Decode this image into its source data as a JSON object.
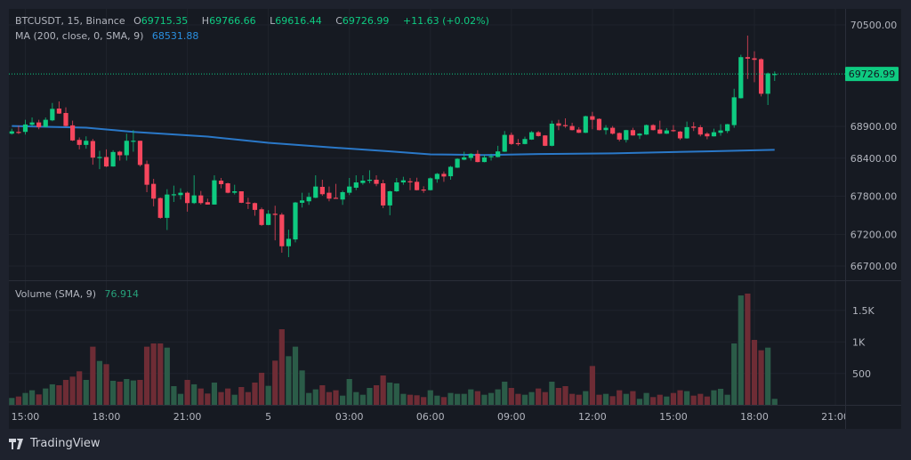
{
  "header": {
    "symbol": "BTCUSDT, 15, Binance",
    "ohlc": [
      {
        "label": "O",
        "value": "69715.35"
      },
      {
        "label": "H",
        "value": "69766.66"
      },
      {
        "label": "L",
        "value": "69616.44"
      },
      {
        "label": "C",
        "value": "69726.99"
      }
    ],
    "change": "+11.63 (+0.02%)"
  },
  "ma_indicator": {
    "label": "MA (200, close, 0, SMA, 9)",
    "value": "68531.88"
  },
  "volume_indicator": {
    "label": "Volume (SMA, 9)",
    "value": "76.914"
  },
  "last_price_label": "69726.99",
  "branding": "TradingView",
  "colors": {
    "up": "#0ecb81",
    "down": "#f6465d",
    "ma": "#2a78c8",
    "volume_up": "#2b5c48",
    "volume_down": "#6e2c35",
    "background": "#161a22",
    "frame": "#1e222d"
  },
  "chart_data": {
    "type": "candlestick",
    "symbol": "BTCUSDT",
    "interval": "15",
    "price_axis": {
      "ticks": [
        "70500.00",
        "68900.00",
        "68400.00",
        "67800.00",
        "67200.00",
        "66700.00"
      ],
      "range": [
        66700,
        70500
      ]
    },
    "volume_axis": {
      "ticks": [
        {
          "label": "1.5K",
          "value": 1500
        },
        {
          "label": "1K",
          "value": 1000
        },
        {
          "label": "500",
          "value": 500
        }
      ]
    },
    "x_axis": {
      "ticks": [
        {
          "label": "15:00",
          "time": "04 15:00"
        },
        {
          "label": "18:00",
          "time": "04 18:00"
        },
        {
          "label": "21:00",
          "time": "04 21:00"
        },
        {
          "label": "5",
          "time": "05 00:00"
        },
        {
          "label": "03:00",
          "time": "05 03:00"
        },
        {
          "label": "06:00",
          "time": "05 06:00"
        },
        {
          "label": "09:00",
          "time": "05 09:00"
        },
        {
          "label": "12:00",
          "time": "05 12:00"
        },
        {
          "label": "15:00",
          "time": "05 15:00"
        },
        {
          "label": "18:00",
          "time": "05 18:00"
        },
        {
          "label": "21:00",
          "time": "05 21:00"
        }
      ]
    },
    "columns": [
      "time",
      "open",
      "high",
      "low",
      "close",
      "volume"
    ],
    "candles": [
      [
        "04 14:30",
        68786,
        68865,
        68772,
        68823,
        113
      ],
      [
        "04 14:45",
        68814,
        68912,
        68781,
        68809,
        136
      ],
      [
        "04 15:00",
        68814,
        69005,
        68772,
        68931,
        192
      ],
      [
        "04 15:15",
        68926,
        69042,
        68903,
        68963,
        235
      ],
      [
        "04 15:30",
        68963,
        69005,
        68856,
        68889,
        169
      ],
      [
        "04 15:45",
        68893,
        69042,
        68889,
        69005,
        263
      ],
      [
        "04 16:00",
        68996,
        69270,
        68982,
        69177,
        329
      ],
      [
        "04 16:15",
        69182,
        69294,
        69098,
        69103,
        314
      ],
      [
        "04 16:30",
        69112,
        69201,
        68898,
        68907,
        399
      ],
      [
        "04 16:45",
        68917,
        68991,
        68670,
        68679,
        451
      ],
      [
        "04 17:00",
        68688,
        68726,
        68539,
        68609,
        535
      ],
      [
        "04 17:15",
        68609,
        68744,
        68549,
        68674,
        399
      ],
      [
        "04 17:30",
        68670,
        68702,
        68297,
        68409,
        925
      ],
      [
        "04 17:45",
        68409,
        68516,
        68227,
        68418,
        699
      ],
      [
        "04 18:00",
        68418,
        68539,
        68260,
        68269,
        648
      ],
      [
        "04 18:15",
        68269,
        68525,
        68265,
        68497,
        385
      ],
      [
        "04 18:30",
        68502,
        68516,
        68362,
        68446,
        371
      ],
      [
        "04 18:45",
        68446,
        68786,
        68362,
        68674,
        413
      ],
      [
        "04 19:00",
        68670,
        68842,
        68502,
        68675,
        390
      ],
      [
        "04 19:15",
        68674,
        68674,
        68269,
        68293,
        399
      ],
      [
        "04 19:30",
        68307,
        68362,
        67864,
        67981,
        925
      ],
      [
        "04 19:45",
        67995,
        68074,
        67641,
        67762,
        976
      ],
      [
        "04 20:00",
        67771,
        67780,
        67445,
        67459,
        976
      ],
      [
        "04 20:15",
        67459,
        67911,
        67268,
        67827,
        910
      ],
      [
        "04 20:30",
        67827,
        67967,
        67710,
        67831,
        300
      ],
      [
        "04 20:45",
        67818,
        67925,
        67748,
        67855,
        178
      ],
      [
        "04 21:00",
        67855,
        67873,
        67557,
        67692,
        399
      ],
      [
        "04 21:15",
        67692,
        68130,
        67678,
        67813,
        329
      ],
      [
        "04 21:30",
        67813,
        67883,
        67669,
        67692,
        263
      ],
      [
        "04 21:45",
        67706,
        67762,
        67669,
        67669,
        183
      ],
      [
        "04 22:00",
        67669,
        68130,
        67669,
        68051,
        357
      ],
      [
        "04 22:15",
        68046,
        68088,
        67925,
        67990,
        206
      ],
      [
        "04 22:30",
        68004,
        68013,
        67846,
        67855,
        263
      ],
      [
        "04 22:45",
        67855,
        67981,
        67827,
        67878,
        164
      ],
      [
        "04 23:00",
        67878,
        67878,
        67692,
        67697,
        286
      ],
      [
        "04 23:15",
        67701,
        67776,
        67599,
        67687,
        206
      ],
      [
        "04 23:30",
        67692,
        67701,
        67492,
        67585,
        357
      ],
      [
        "04 23:45",
        67594,
        67622,
        67333,
        67347,
        512
      ],
      [
        "05 00:00",
        67347,
        67580,
        67343,
        67524,
        305
      ],
      [
        "05 00:15",
        67524,
        67650,
        67105,
        67506,
        704
      ],
      [
        "05 00:30",
        67510,
        67538,
        66910,
        67012,
        1201
      ],
      [
        "05 00:45",
        67012,
        67273,
        66840,
        67129,
        774
      ],
      [
        "05 01:00",
        67119,
        67710,
        67073,
        67701,
        925
      ],
      [
        "05 01:15",
        67697,
        67855,
        67622,
        67734,
        549
      ],
      [
        "05 01:30",
        67720,
        67855,
        67664,
        67790,
        192
      ],
      [
        "05 01:45",
        67776,
        68130,
        67771,
        67953,
        249
      ],
      [
        "05 02:00",
        67948,
        68060,
        67808,
        67832,
        314
      ],
      [
        "05 02:15",
        67855,
        67953,
        67720,
        67762,
        206
      ],
      [
        "05 02:30",
        67776,
        67995,
        67762,
        67767,
        235
      ],
      [
        "05 02:45",
        67748,
        67888,
        67664,
        67864,
        150
      ],
      [
        "05 03:00",
        67855,
        68088,
        67818,
        67953,
        413
      ],
      [
        "05 03:15",
        67934,
        68130,
        67897,
        68018,
        206
      ],
      [
        "05 03:30",
        68009,
        68130,
        67981,
        68046,
        164
      ],
      [
        "05 03:45",
        68051,
        68209,
        68004,
        68060,
        272
      ],
      [
        "05 04:00",
        68060,
        68130,
        67958,
        67995,
        314
      ],
      [
        "05 04:15",
        68004,
        68060,
        67613,
        67655,
        469
      ],
      [
        "05 04:30",
        67655,
        67888,
        67501,
        67878,
        357
      ],
      [
        "05 04:45",
        67878,
        68088,
        67869,
        68018,
        343
      ],
      [
        "05 05:00",
        68018,
        68107,
        67981,
        68051,
        178
      ],
      [
        "05 05:15",
        68036,
        68087,
        67896,
        68022,
        164
      ],
      [
        "05 05:30",
        68027,
        68092,
        67891,
        67896,
        155
      ],
      [
        "05 05:45",
        67906,
        67957,
        67854,
        67896,
        127
      ],
      [
        "05 06:00",
        67896,
        68097,
        67891,
        68083,
        235
      ],
      [
        "05 06:15",
        68069,
        68167,
        68013,
        68153,
        150
      ],
      [
        "05 06:30",
        68153,
        68190,
        68027,
        68111,
        127
      ],
      [
        "05 06:45",
        68115,
        68278,
        68060,
        68264,
        192
      ],
      [
        "05 07:00",
        68250,
        68399,
        68245,
        68390,
        178
      ],
      [
        "05 07:15",
        68376,
        68502,
        68367,
        68413,
        178
      ],
      [
        "05 07:30",
        68404,
        68478,
        68362,
        68469,
        249
      ],
      [
        "05 07:45",
        68469,
        68525,
        68334,
        68339,
        221
      ],
      [
        "05 08:00",
        68339,
        68455,
        68334,
        68413,
        164
      ],
      [
        "05 08:15",
        68423,
        68469,
        68362,
        68432,
        192
      ],
      [
        "05 08:30",
        68418,
        68595,
        68413,
        68506,
        249
      ],
      [
        "05 08:45",
        68502,
        68828,
        68497,
        68767,
        371
      ],
      [
        "05 09:00",
        68767,
        68804,
        68609,
        68623,
        272
      ],
      [
        "05 09:15",
        68637,
        68702,
        68595,
        68623,
        178
      ],
      [
        "05 09:30",
        68623,
        68739,
        68618,
        68702,
        164
      ],
      [
        "05 09:45",
        68693,
        68828,
        68688,
        68809,
        206
      ],
      [
        "05 10:00",
        68809,
        68828,
        68740,
        68749,
        263
      ],
      [
        "05 10:15",
        68758,
        68763,
        68590,
        68595,
        206
      ],
      [
        "05 10:30",
        68595,
        68991,
        68586,
        68944,
        371
      ],
      [
        "05 10:45",
        68949,
        69005,
        68842,
        68912,
        272
      ],
      [
        "05 11:00",
        68921,
        69028,
        68879,
        68907,
        300
      ],
      [
        "05 11:15",
        68907,
        68958,
        68837,
        68842,
        178
      ],
      [
        "05 11:30",
        68851,
        68888,
        68795,
        68800,
        164
      ],
      [
        "05 11:45",
        68800,
        69070,
        68795,
        69061,
        221
      ],
      [
        "05 12:00",
        69061,
        69130,
        68856,
        69005,
        619
      ],
      [
        "05 12:15",
        69019,
        69028,
        68837,
        68842,
        164
      ],
      [
        "05 12:30",
        68842,
        68921,
        68772,
        68879,
        178
      ],
      [
        "05 12:45",
        68879,
        68907,
        68772,
        68786,
        141
      ],
      [
        "05 13:00",
        68796,
        68805,
        68665,
        68693,
        235
      ],
      [
        "05 13:15",
        68688,
        68847,
        68647,
        68842,
        178
      ],
      [
        "05 13:30",
        68842,
        68879,
        68754,
        68758,
        221
      ],
      [
        "05 13:45",
        68758,
        68795,
        68702,
        68786,
        99
      ],
      [
        "05 14:00",
        68772,
        68930,
        68767,
        68921,
        192
      ],
      [
        "05 14:15",
        68921,
        68935,
        68837,
        68842,
        127
      ],
      [
        "05 14:30",
        68851,
        68991,
        68781,
        68786,
        164
      ],
      [
        "05 14:45",
        68786,
        68875,
        68781,
        68837,
        136
      ],
      [
        "05 15:00",
        68842,
        68921,
        68814,
        68828,
        192
      ],
      [
        "05 15:15",
        68819,
        68828,
        68688,
        68712,
        235
      ],
      [
        "05 15:30",
        68712,
        68977,
        68707,
        68889,
        221
      ],
      [
        "05 15:45",
        68898,
        68968,
        68828,
        68879,
        150
      ],
      [
        "05 16:00",
        68888,
        68921,
        68744,
        68772,
        178
      ],
      [
        "05 16:15",
        68786,
        68809,
        68698,
        68744,
        136
      ],
      [
        "05 16:30",
        68744,
        68865,
        68740,
        68809,
        235
      ],
      [
        "05 16:45",
        68800,
        68935,
        68754,
        68837,
        258
      ],
      [
        "05 17:00",
        68828,
        68940,
        68795,
        68935,
        164
      ],
      [
        "05 17:15",
        68921,
        69494,
        68879,
        69359,
        976
      ],
      [
        "05 17:30",
        69345,
        70030,
        69340,
        69992,
        1736
      ],
      [
        "05 17:45",
        69992,
        70332,
        69648,
        69969,
        1765
      ],
      [
        "05 18:00",
        69974,
        70085,
        69597,
        69950,
        1032
      ],
      [
        "05 18:15",
        69960,
        69974,
        69373,
        69415,
        868
      ],
      [
        "05 18:30",
        69415,
        69750,
        69238,
        69736,
        910
      ],
      [
        "05 18:45",
        69715.35,
        69766.66,
        69616.44,
        69726.99,
        99
      ]
    ],
    "ma_200": [
      [
        "04 14:30",
        68907
      ],
      [
        "04 17:15",
        68880
      ],
      [
        "04 19:00",
        68814
      ],
      [
        "04 21:45",
        68740
      ],
      [
        "05 00:00",
        68642
      ],
      [
        "05 02:15",
        68572
      ],
      [
        "05 04:30",
        68507
      ],
      [
        "05 06:00",
        68460
      ],
      [
        "05 08:00",
        68450
      ],
      [
        "05 10:00",
        68465
      ],
      [
        "05 12:45",
        68475
      ],
      [
        "05 16:15",
        68507
      ],
      [
        "05 18:45",
        68531.88
      ]
    ]
  }
}
